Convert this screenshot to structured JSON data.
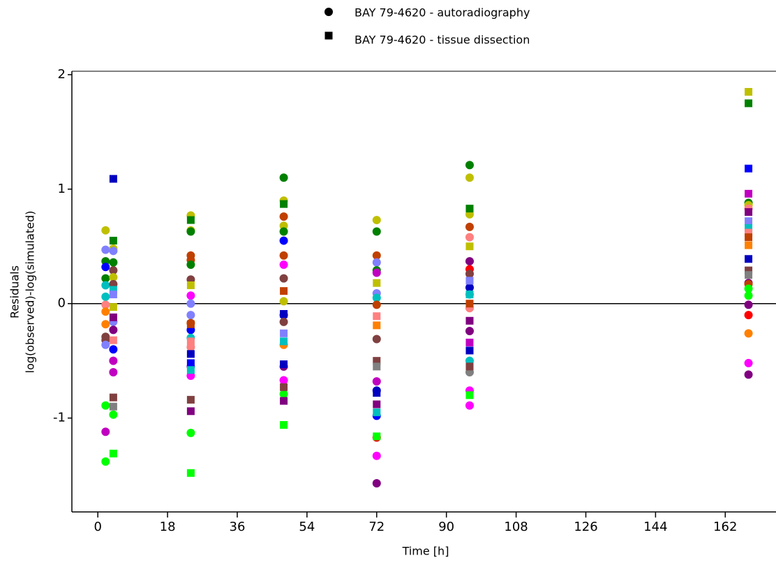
{
  "chart_data": {
    "type": "scatter",
    "xlabel": "Time [h]",
    "ylabel": [
      "Residuals",
      "log(observed)-log(simulated)"
    ],
    "xlim": [
      -6.7,
      175.1
    ],
    "ylim": [
      -1.82,
      2.03
    ],
    "xticks": [
      0,
      18,
      36,
      54,
      72,
      90,
      108,
      126,
      144,
      162
    ],
    "yticks": [
      -1,
      0,
      1,
      2
    ],
    "zero_line": true,
    "legend_color": "#000000",
    "series": [
      {
        "name": "BAY 79-4620 - autoradiography",
        "marker": "circle",
        "x": [
          2,
          2,
          2,
          2,
          2,
          2,
          2,
          2,
          2,
          2,
          2,
          2,
          2,
          2,
          2,
          2,
          4,
          4,
          4,
          4,
          4,
          4,
          4,
          4,
          4,
          4,
          4,
          4,
          24,
          24,
          24,
          24,
          24,
          24,
          24,
          24,
          24,
          24,
          24,
          24,
          24,
          24,
          24,
          24,
          24,
          48,
          48,
          48,
          48,
          48,
          48,
          48,
          48,
          48,
          48,
          48,
          48,
          48,
          48,
          48,
          48,
          72,
          72,
          72,
          72,
          72,
          72,
          72,
          72,
          72,
          72,
          72,
          72,
          72,
          72,
          72,
          72,
          96,
          96,
          96,
          96,
          96,
          96,
          96,
          96,
          96,
          96,
          96,
          96,
          96,
          96,
          96,
          96,
          168,
          168,
          168,
          168,
          168,
          168,
          168,
          168,
          168,
          168,
          168,
          168
        ],
        "values": [
          0.64,
          0.47,
          0.37,
          0.32,
          0.22,
          0.16,
          0.06,
          -0.01,
          -0.07,
          -0.18,
          -0.29,
          -0.32,
          -0.36,
          -0.89,
          -1.12,
          -1.38,
          0.48,
          0.46,
          0.36,
          0.29,
          0.23,
          0.17,
          -0.16,
          -0.23,
          -0.4,
          -0.5,
          -0.6,
          -0.97,
          0.77,
          0.64,
          0.63,
          0.42,
          0.38,
          0.34,
          0.21,
          0.07,
          0.0,
          -0.1,
          -0.17,
          -0.23,
          -0.3,
          -0.38,
          -0.55,
          -0.63,
          -1.13,
          1.1,
          0.9,
          0.76,
          0.68,
          0.63,
          0.55,
          0.42,
          0.34,
          0.22,
          0.02,
          -0.1,
          -0.16,
          -0.36,
          -0.55,
          -0.67,
          -0.79,
          0.73,
          0.63,
          0.42,
          0.36,
          0.29,
          0.27,
          0.09,
          0.05,
          -0.01,
          -0.31,
          -0.68,
          -0.76,
          -0.98,
          -1.17,
          -1.33,
          -1.57,
          1.21,
          1.1,
          0.78,
          0.67,
          0.58,
          0.37,
          0.3,
          0.26,
          0.14,
          0.08,
          -0.04,
          -0.24,
          -0.5,
          -0.6,
          -0.76,
          -0.89,
          0.88,
          0.86,
          0.83,
          0.18,
          0.17,
          0.13,
          0.07,
          -0.01,
          -0.1,
          -0.26,
          -0.52,
          -0.62
        ],
        "colors": [
          "#bfbf00",
          "#8080ff",
          "#008000",
          "#0000ff",
          "#008000",
          "#00bfbf",
          "#00bfbf",
          "#ff8080",
          "#ff8000",
          "#ff8000",
          "#804040",
          "#804040",
          "#8080ff",
          "#00ff00",
          "#c000c0",
          "#00ff00",
          "#bfbf00",
          "#8080ff",
          "#008000",
          "#804040",
          "#bfbf00",
          "#804040",
          "#8080ff",
          "#800080",
          "#0000ff",
          "#c000c0",
          "#c000c0",
          "#00ff00",
          "#bfbf00",
          "#bfbf00",
          "#008000",
          "#c04000",
          "#c04000",
          "#008000",
          "#804040",
          "#ff00ff",
          "#8080ff",
          "#8080ff",
          "#c04000",
          "#0000ff",
          "#00bfbf",
          "#ff8080",
          "#c000c0",
          "#ff00ff",
          "#00ff00",
          "#008000",
          "#bfbf00",
          "#c04000",
          "#bfbf00",
          "#008000",
          "#0000ff",
          "#c04000",
          "#ff00ff",
          "#804040",
          "#bfbf00",
          "#0000ff",
          "#804040",
          "#ff8000",
          "#800080",
          "#ff00ff",
          "#00ff00",
          "#bfbf00",
          "#008000",
          "#c04000",
          "#8080ff",
          "#008000",
          "#c000c0",
          "#8080ff",
          "#00bfbf",
          "#c04000",
          "#804040",
          "#c000c0",
          "#0000c0",
          "#0000ff",
          "#ff0000",
          "#ff00ff",
          "#800080",
          "#008000",
          "#bfbf00",
          "#bfbf00",
          "#c04000",
          "#ff8080",
          "#800080",
          "#ff0000",
          "#804040",
          "#0000c0",
          "#00bfbf",
          "#ff8080",
          "#800080",
          "#00bfbf",
          "#808080",
          "#ff00ff",
          "#ff00ff",
          "#008000",
          "#bfbf00",
          "#ff8080",
          "#800080",
          "#c04000",
          "#00ff00",
          "#00ff00",
          "#800080",
          "#ff0000",
          "#ff8000",
          "#ff00ff",
          "#800080"
        ]
      },
      {
        "name": "BAY 79-4620 - tissue dissection",
        "marker": "square",
        "x": [
          4,
          4,
          4,
          4,
          4,
          4,
          4,
          4,
          4,
          4,
          24,
          24,
          24,
          24,
          24,
          24,
          24,
          24,
          24,
          24,
          48,
          48,
          48,
          48,
          48,
          48,
          48,
          48,
          48,
          72,
          72,
          72,
          72,
          72,
          72,
          72,
          72,
          72,
          96,
          96,
          96,
          96,
          96,
          96,
          96,
          96,
          96,
          96,
          168,
          168,
          168,
          168,
          168,
          168,
          168,
          168,
          168,
          168,
          168,
          168,
          168
        ],
        "values": [
          1.09,
          0.55,
          0.12,
          0.08,
          -0.03,
          -0.12,
          -0.32,
          -0.82,
          -0.9,
          -1.31,
          0.73,
          0.16,
          -0.18,
          -0.33,
          -0.44,
          -0.52,
          -0.58,
          -0.84,
          -0.94,
          -1.48,
          0.87,
          0.11,
          -0.09,
          -0.26,
          -0.33,
          -0.53,
          -0.73,
          -0.85,
          -1.06,
          0.18,
          -0.11,
          -0.19,
          -0.5,
          -0.55,
          -0.78,
          -0.88,
          -0.95,
          -1.16,
          0.83,
          0.5,
          0.2,
          0.08,
          0.0,
          -0.15,
          -0.34,
          -0.41,
          -0.55,
          -0.8,
          1.85,
          1.75,
          1.18,
          0.96,
          0.8,
          0.72,
          0.66,
          0.62,
          0.58,
          0.51,
          0.39,
          0.29,
          0.25
        ],
        "colors": [
          "#0000c0",
          "#008000",
          "#00bfbf",
          "#8080ff",
          "#bfbf00",
          "#800080",
          "#ff8080",
          "#804040",
          "#808080",
          "#00ff00",
          "#008000",
          "#bfbf00",
          "#c04000",
          "#ff8080",
          "#0000c0",
          "#0000ff",
          "#00bfbf",
          "#804040",
          "#800080",
          "#00ff00",
          "#008000",
          "#c04000",
          "#0000c0",
          "#8080ff",
          "#00bfbf",
          "#0000c0",
          "#804040",
          "#800080",
          "#00ff00",
          "#bfbf00",
          "#ff8080",
          "#ff8000",
          "#804040",
          "#808080",
          "#0000c0",
          "#800080",
          "#00bfbf",
          "#00ff00",
          "#008000",
          "#bfbf00",
          "#8080ff",
          "#00bfbf",
          "#c04000",
          "#800080",
          "#c000c0",
          "#0000c0",
          "#804040",
          "#00ff00",
          "#bfbf00",
          "#008000",
          "#0000ff",
          "#c000c0",
          "#800080",
          "#8080ff",
          "#00bfbf",
          "#ff8080",
          "#c04000",
          "#ff8000",
          "#0000c0",
          "#804040",
          "#808080"
        ]
      }
    ]
  }
}
